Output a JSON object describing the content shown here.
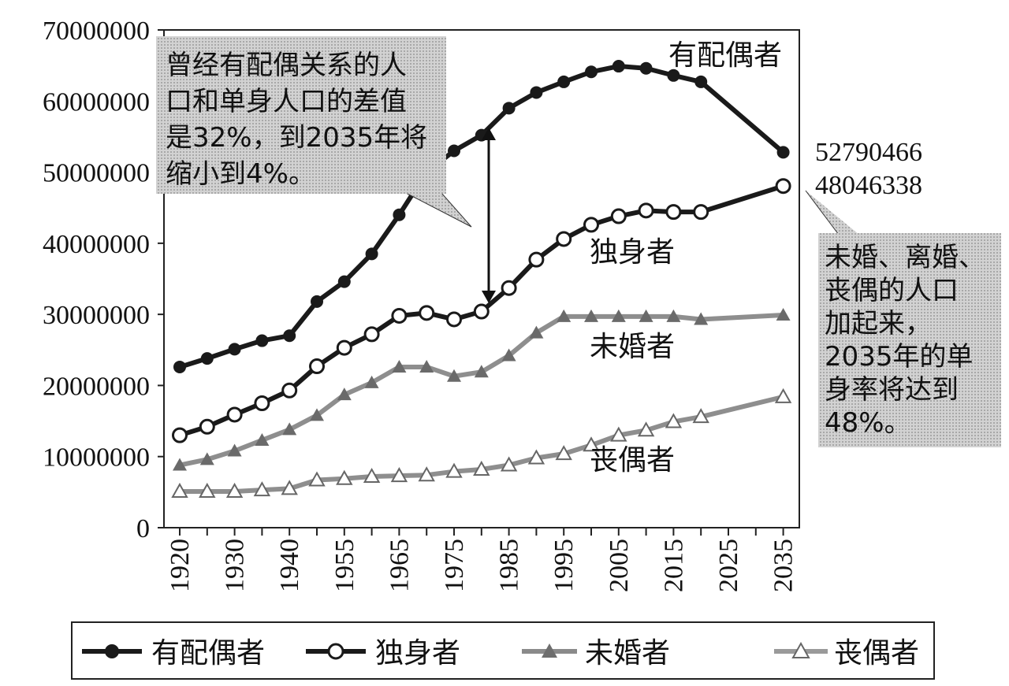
{
  "chart_data": {
    "type": "line",
    "x_ticks": [
      1920,
      1930,
      1940,
      1955,
      1965,
      1975,
      1985,
      1995,
      2005,
      2015,
      2025,
      2035
    ],
    "y_ticks": [
      0,
      10000000,
      20000000,
      30000000,
      40000000,
      50000000,
      60000000,
      70000000
    ],
    "ylim": [
      0,
      70000000
    ],
    "x_positions_years": [
      1920,
      1925,
      1930,
      1935,
      1940,
      1945,
      1950,
      1955,
      1960,
      1965,
      1970,
      1975,
      1980,
      1985,
      1990,
      1995,
      2000,
      2005,
      2010,
      2015,
      2035
    ],
    "series": [
      {
        "name": "有配偶者",
        "marker": "filled-circle",
        "color": "#1a1a1a",
        "values": [
          22600000,
          23800000,
          25100000,
          26300000,
          27000000,
          31800000,
          34600000,
          38500000,
          44000000,
          50000000,
          53000000,
          55200000,
          59000000,
          61200000,
          62700000,
          64100000,
          64900000,
          64600000,
          63600000,
          62700000,
          52790466
        ]
      },
      {
        "name": "独身者",
        "marker": "open-circle",
        "color": "#1a1a1a",
        "values": [
          13000000,
          14200000,
          15900000,
          17500000,
          19300000,
          22700000,
          25300000,
          27200000,
          29800000,
          30200000,
          29300000,
          30400000,
          33700000,
          37700000,
          40600000,
          42600000,
          43800000,
          44600000,
          44400000,
          44400000,
          48046338
        ]
      },
      {
        "name": "未婚者",
        "marker": "filled-triangle",
        "color": "#777777",
        "values": [
          8800000,
          9600000,
          10800000,
          12300000,
          13800000,
          15800000,
          18700000,
          20400000,
          22600000,
          22600000,
          21300000,
          21900000,
          24200000,
          27400000,
          29700000,
          29700000,
          29700000,
          29700000,
          29700000,
          29300000,
          29900000
        ]
      },
      {
        "name": "丧偶者",
        "marker": "open-triangle",
        "color": "#777777",
        "values": [
          5100000,
          5100000,
          5100000,
          5300000,
          5500000,
          6700000,
          6900000,
          7200000,
          7300000,
          7400000,
          7900000,
          8200000,
          8800000,
          9800000,
          10400000,
          11600000,
          13000000,
          13700000,
          14900000,
          15600000,
          18400000
        ]
      }
    ],
    "end_labels": [
      "52790466",
      "48046338"
    ],
    "line_labels": [
      "有配偶者",
      "独身者",
      "未婚者",
      "丧偶者"
    ],
    "annotations": {
      "gap_note": [
        "曾经有配偶关系的人",
        "口和单身人口的差值",
        "是32%，到2035年将",
        "缩小到4%。"
      ],
      "single_note": [
        "未婚、离婚、",
        "丧偶的人口",
        "加起来，",
        "2035年的单",
        "身率将达到",
        "48%。"
      ]
    },
    "legend": [
      {
        "label": "有配偶者",
        "marker": "filled-circle"
      },
      {
        "label": "独身者",
        "marker": "open-circle"
      },
      {
        "label": "未婚者",
        "marker": "filled-triangle"
      },
      {
        "label": "丧偶者",
        "marker": "open-triangle"
      }
    ]
  }
}
